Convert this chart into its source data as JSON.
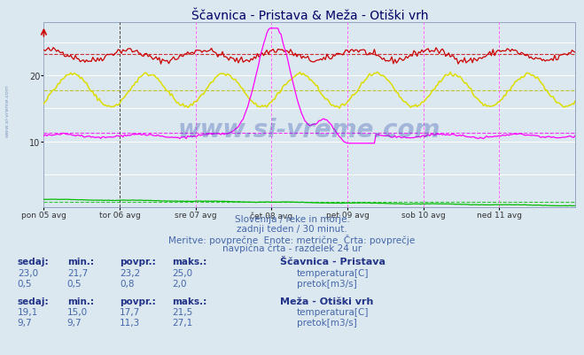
{
  "title": "Ščavnica - Pristava & Meža - Otiški vrh",
  "bg_color": "#dce8f0",
  "plot_bg": "#dce8f0",
  "n_points": 337,
  "x_labels": [
    "pon 05 avg",
    "tor 06 avg",
    "sre 07 avg",
    "čet 08 avg",
    "pet 09 avg",
    "sob 10 avg",
    "ned 11 avg"
  ],
  "day_ticks": [
    0,
    48,
    96,
    144,
    192,
    240,
    288,
    336
  ],
  "ylim": [
    0,
    28
  ],
  "yticks": [
    10,
    20
  ],
  "dashed_hline_red": 23.2,
  "dashed_hline_yellow": 17.7,
  "dashed_hline_magenta": 11.3,
  "dashed_hline_green": 0.8,
  "line1_color": "#cc0000",
  "line2_color": "#00bb00",
  "line3_color": "#dddd00",
  "line4_color": "#ff00ff",
  "subtitle1": "Slovenija / reke in morje.",
  "subtitle2": "zadnji teden / 30 minut.",
  "subtitle3": "Meritve: povprečne  Enote: metrične  Črta: povprečje",
  "subtitle4": "navpična črta - razdelek 24 ur",
  "watermark": "www.si-vreme.com",
  "sidebar": "www.si-vreme.com",
  "stat_title1": "Ščavnica - Pristava",
  "stat_title2": "Meža - Otiški vrh",
  "header_labels": [
    "sedaj:",
    "min.:",
    "povpr.:",
    "maks.:"
  ],
  "sc_temp": [
    23.0,
    21.7,
    23.2,
    25.0
  ],
  "sc_pretok": [
    0.5,
    0.5,
    0.8,
    2.0
  ],
  "me_temp": [
    19.1,
    15.0,
    17.7,
    21.5
  ],
  "me_pretok": [
    9.7,
    9.7,
    11.3,
    27.1
  ],
  "legend_sq_sc_temp": "#cc0000",
  "legend_sq_sc_pretok": "#00bb00",
  "legend_sq_me_temp": "#dddd00",
  "legend_sq_me_pretok": "#ff00ff",
  "text_color": "#4466aa",
  "bold_color": "#223388",
  "title_color": "#000066"
}
